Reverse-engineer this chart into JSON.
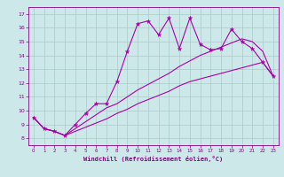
{
  "xlabel": "Windchill (Refroidissement éolien,°C)",
  "background_color": "#cce8e8",
  "line_color": "#aa00aa",
  "grid_color": "#aacccc",
  "x_data": [
    0,
    1,
    2,
    3,
    4,
    5,
    6,
    7,
    8,
    9,
    10,
    11,
    12,
    13,
    14,
    15,
    16,
    17,
    18,
    19,
    20,
    21,
    22,
    23
  ],
  "line1_y": [
    9.5,
    8.7,
    8.5,
    8.2,
    9.0,
    9.8,
    10.5,
    10.5,
    12.1,
    14.3,
    16.3,
    16.5,
    15.5,
    16.7,
    14.5,
    16.7,
    14.8,
    14.4,
    14.5,
    15.9,
    15.0,
    14.5,
    13.5,
    12.5
  ],
  "line2_y": [
    9.5,
    8.7,
    8.5,
    8.2,
    8.5,
    8.8,
    9.1,
    9.4,
    9.8,
    10.1,
    10.5,
    10.8,
    11.1,
    11.4,
    11.8,
    12.1,
    12.3,
    12.5,
    12.7,
    12.9,
    13.1,
    13.3,
    13.5,
    12.5
  ],
  "line3_y": [
    9.5,
    8.7,
    8.5,
    8.2,
    8.7,
    9.2,
    9.7,
    10.2,
    10.5,
    11.0,
    11.5,
    11.9,
    12.3,
    12.7,
    13.2,
    13.6,
    14.0,
    14.3,
    14.6,
    14.9,
    15.2,
    15.0,
    14.3,
    12.5
  ],
  "ylim": [
    7.5,
    17.5
  ],
  "xlim": [
    -0.5,
    23.5
  ],
  "yticks": [
    8,
    9,
    10,
    11,
    12,
    13,
    14,
    15,
    16,
    17
  ],
  "xticks": [
    0,
    1,
    2,
    3,
    4,
    5,
    6,
    7,
    8,
    9,
    10,
    11,
    12,
    13,
    14,
    15,
    16,
    17,
    18,
    19,
    20,
    21,
    22,
    23
  ]
}
